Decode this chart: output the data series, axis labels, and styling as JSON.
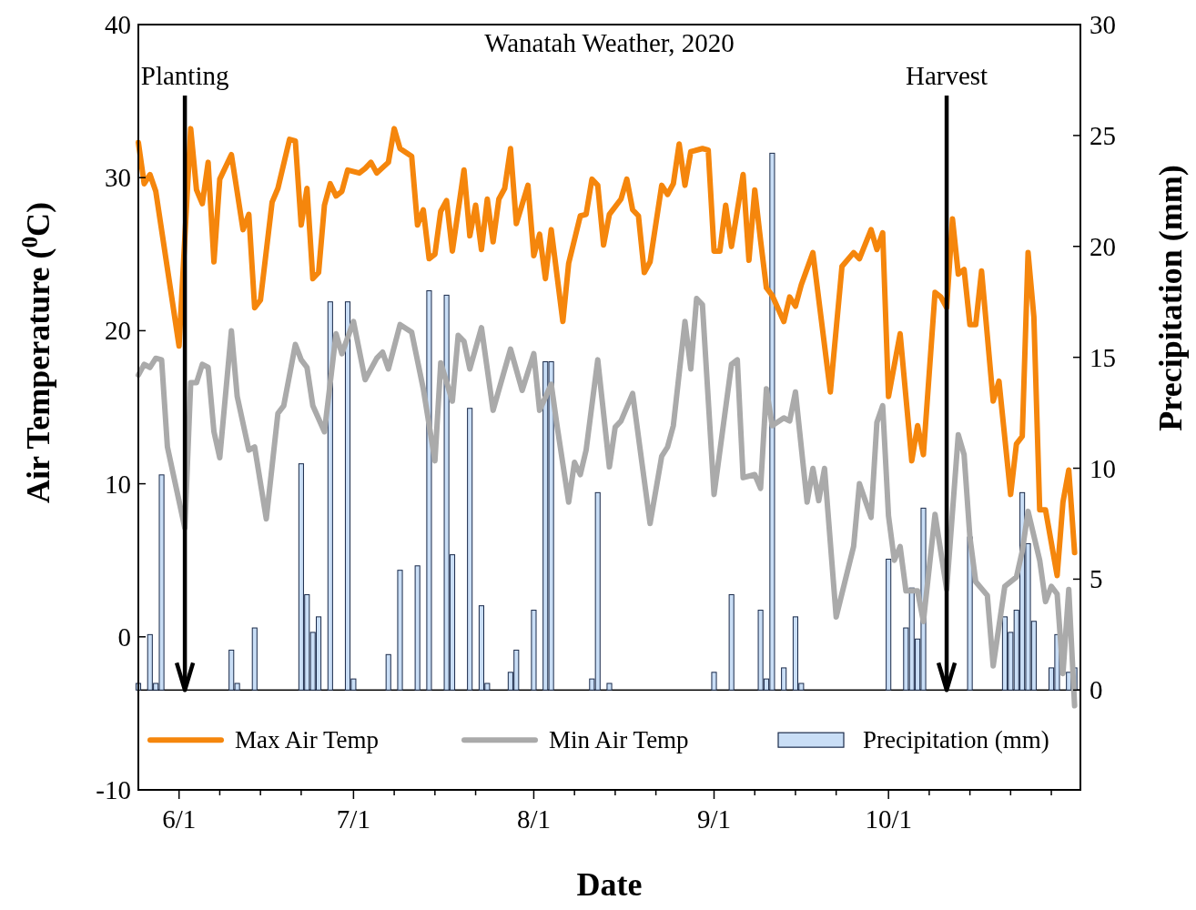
{
  "chart_data": {
    "type": "line",
    "title": "Wanatah Weather, 2020",
    "xlabel": "Date",
    "ylabel": "Air Temperature ($^{0}$C)",
    "y2label": "Precipitation (mm)",
    "xlim": [
      "2020-05-25",
      "2020-11-03"
    ],
    "xticks": [
      {
        "value": "2020-06-01",
        "label": "6/1"
      },
      {
        "value": "2020-06-08",
        "label": null
      },
      {
        "value": "2020-06-15",
        "label": null
      },
      {
        "value": "2020-06-22",
        "label": null
      },
      {
        "value": "2020-07-01",
        "label": "7/1"
      },
      {
        "value": "2020-07-08",
        "label": null
      },
      {
        "value": "2020-07-15",
        "label": null
      },
      {
        "value": "2020-07-22",
        "label": null
      },
      {
        "value": "2020-08-01",
        "label": "8/1"
      },
      {
        "value": "2020-08-08",
        "label": null
      },
      {
        "value": "2020-08-15",
        "label": null
      },
      {
        "value": "2020-08-22",
        "label": null
      },
      {
        "value": "2020-09-01",
        "label": "9/1"
      },
      {
        "value": "2020-09-08",
        "label": null
      },
      {
        "value": "2020-09-15",
        "label": null
      },
      {
        "value": "2020-09-22",
        "label": null
      },
      {
        "value": "2020-10-01",
        "label": "10/1"
      },
      {
        "value": "2020-10-08",
        "label": null
      },
      {
        "value": "2020-10-15",
        "label": null
      },
      {
        "value": "2020-10-22",
        "label": null
      },
      {
        "value": "2020-10-29",
        "label": null
      }
    ],
    "ylim": [
      -10,
      40
    ],
    "yticks": [
      -10,
      0,
      10,
      20,
      30,
      40
    ],
    "y2lim": [
      -4.5,
      30
    ],
    "y2ticks": [
      0,
      5,
      10,
      15,
      20,
      25,
      30
    ],
    "legend": "bottom",
    "ref_lines": [
      {
        "axis": "x",
        "value": "2020-06-02",
        "label": "Planting",
        "color": "#000000"
      },
      {
        "axis": "x",
        "value": "2020-10-11",
        "label": "Harvest",
        "color": "#000000"
      }
    ],
    "series": [
      {
        "name": "Max Air Temp",
        "color": "#f5860c",
        "x": [
          "2020-05-25",
          "2020-05-26",
          "2020-05-27",
          "2020-05-28",
          "2020-06-01",
          "2020-06-03",
          "2020-06-04",
          "2020-06-05",
          "2020-06-06",
          "2020-06-07",
          "2020-06-08",
          "2020-06-10",
          "2020-06-12",
          "2020-06-13",
          "2020-06-14",
          "2020-06-15",
          "2020-06-17",
          "2020-06-18",
          "2020-06-20",
          "2020-06-21",
          "2020-06-22",
          "2020-06-23",
          "2020-06-24",
          "2020-06-25",
          "2020-06-26",
          "2020-06-27",
          "2020-06-28",
          "2020-06-29",
          "2020-06-30",
          "2020-07-02",
          "2020-07-03",
          "2020-07-04",
          "2020-07-05",
          "2020-07-07",
          "2020-07-08",
          "2020-07-09",
          "2020-07-11",
          "2020-07-12",
          "2020-07-13",
          "2020-07-14",
          "2020-07-15",
          "2020-07-16",
          "2020-07-17",
          "2020-07-18",
          "2020-07-20",
          "2020-07-21",
          "2020-07-22",
          "2020-07-23",
          "2020-07-24",
          "2020-07-25",
          "2020-07-26",
          "2020-07-27",
          "2020-07-28",
          "2020-07-29",
          "2020-07-31",
          "2020-08-01",
          "2020-08-02",
          "2020-08-03",
          "2020-08-04",
          "2020-08-06",
          "2020-08-07",
          "2020-08-09",
          "2020-08-10",
          "2020-08-11",
          "2020-08-12",
          "2020-08-13",
          "2020-08-14",
          "2020-08-16",
          "2020-08-17",
          "2020-08-18",
          "2020-08-19",
          "2020-08-20",
          "2020-08-21",
          "2020-08-23",
          "2020-08-24",
          "2020-08-25",
          "2020-08-26",
          "2020-08-27",
          "2020-08-28",
          "2020-08-30",
          "2020-08-31",
          "2020-09-01",
          "2020-09-02",
          "2020-09-03",
          "2020-09-04",
          "2020-09-06",
          "2020-09-07",
          "2020-09-08",
          "2020-09-09",
          "2020-09-10",
          "2020-09-11",
          "2020-09-13",
          "2020-09-14",
          "2020-09-15",
          "2020-09-16",
          "2020-09-18",
          "2020-09-21",
          "2020-09-23",
          "2020-09-25",
          "2020-09-26",
          "2020-09-28",
          "2020-09-29",
          "2020-09-30",
          "2020-10-01",
          "2020-10-03",
          "2020-10-05",
          "2020-10-06",
          "2020-10-07",
          "2020-10-09",
          "2020-10-10",
          "2020-10-11",
          "2020-10-12",
          "2020-10-13",
          "2020-10-14",
          "2020-10-15",
          "2020-10-16",
          "2020-10-17",
          "2020-10-19",
          "2020-10-20",
          "2020-10-22",
          "2020-10-23",
          "2020-10-24",
          "2020-10-25",
          "2020-10-26",
          "2020-10-27",
          "2020-10-28",
          "2020-10-30",
          "2020-10-31",
          "2020-11-01",
          "2020-11-02"
        ],
        "values": [
          32.3,
          29.6,
          30.2,
          29.1,
          19.0,
          33.2,
          29.2,
          28.3,
          31.0,
          24.5,
          29.9,
          31.5,
          26.6,
          27.6,
          21.5,
          22.0,
          28.4,
          29.3,
          32.5,
          32.4,
          26.9,
          29.3,
          23.4,
          23.8,
          28.2,
          29.6,
          28.8,
          29.1,
          30.5,
          30.3,
          30.6,
          31.0,
          30.3,
          31.0,
          33.2,
          31.9,
          31.4,
          26.9,
          27.9,
          24.7,
          25.0,
          27.8,
          28.5,
          25.2,
          30.5,
          26.2,
          28.2,
          25.3,
          28.6,
          25.8,
          28.6,
          29.3,
          31.9,
          27.0,
          29.5,
          24.9,
          26.3,
          23.4,
          26.6,
          20.6,
          24.4,
          27.5,
          27.6,
          29.9,
          29.5,
          25.6,
          27.6,
          28.6,
          29.9,
          27.9,
          27.5,
          23.8,
          24.5,
          29.5,
          28.9,
          29.6,
          32.2,
          29.5,
          31.7,
          31.9,
          31.8,
          25.2,
          25.2,
          28.2,
          25.5,
          30.2,
          24.6,
          29.2,
          25.9,
          22.8,
          22.3,
          20.6,
          22.2,
          21.6,
          23.0,
          25.1,
          16.0,
          24.2,
          25.1,
          24.7,
          26.6,
          25.3,
          26.4,
          15.7,
          19.8,
          11.5,
          13.8,
          11.9,
          22.5,
          22.2,
          21.5,
          27.3,
          23.7,
          24.0,
          20.4,
          20.4,
          23.9,
          15.4,
          16.7,
          9.3,
          12.6,
          13.1,
          25.1,
          20.9,
          8.3,
          8.3,
          4.0,
          8.8,
          10.9,
          5.5
        ]
      },
      {
        "name": "Min Air Temp",
        "color": "#aaaaaa",
        "x": [
          "2020-05-25",
          "2020-05-26",
          "2020-05-27",
          "2020-05-28",
          "2020-05-29",
          "2020-05-30",
          "2020-06-02",
          "2020-06-03",
          "2020-06-04",
          "2020-06-05",
          "2020-06-06",
          "2020-06-07",
          "2020-06-08",
          "2020-06-10",
          "2020-06-11",
          "2020-06-13",
          "2020-06-14",
          "2020-06-16",
          "2020-06-18",
          "2020-06-19",
          "2020-06-21",
          "2020-06-22",
          "2020-06-23",
          "2020-06-24",
          "2020-06-26",
          "2020-06-28",
          "2020-06-29",
          "2020-07-01",
          "2020-07-03",
          "2020-07-05",
          "2020-07-06",
          "2020-07-07",
          "2020-07-09",
          "2020-07-11",
          "2020-07-13",
          "2020-07-15",
          "2020-07-16",
          "2020-07-18",
          "2020-07-19",
          "2020-07-20",
          "2020-07-21",
          "2020-07-23",
          "2020-07-25",
          "2020-07-28",
          "2020-07-30",
          "2020-08-01",
          "2020-08-02",
          "2020-08-04",
          "2020-08-05",
          "2020-08-07",
          "2020-08-08",
          "2020-08-09",
          "2020-08-10",
          "2020-08-12",
          "2020-08-14",
          "2020-08-15",
          "2020-08-16",
          "2020-08-18",
          "2020-08-21",
          "2020-08-23",
          "2020-08-24",
          "2020-08-25",
          "2020-08-27",
          "2020-08-28",
          "2020-08-29",
          "2020-08-30",
          "2020-09-01",
          "2020-09-04",
          "2020-09-05",
          "2020-09-06",
          "2020-09-08",
          "2020-09-09",
          "2020-09-10",
          "2020-09-11",
          "2020-09-13",
          "2020-09-14",
          "2020-09-15",
          "2020-09-17",
          "2020-09-18",
          "2020-09-19",
          "2020-09-20",
          "2020-09-22",
          "2020-09-25",
          "2020-09-26",
          "2020-09-28",
          "2020-09-29",
          "2020-09-30",
          "2020-10-01",
          "2020-10-02",
          "2020-10-03",
          "2020-10-04",
          "2020-10-06",
          "2020-10-07",
          "2020-10-09",
          "2020-10-11",
          "2020-10-13",
          "2020-10-14",
          "2020-10-15",
          "2020-10-16",
          "2020-10-18",
          "2020-10-19",
          "2020-10-21",
          "2020-10-23",
          "2020-10-24",
          "2020-10-25",
          "2020-10-27",
          "2020-10-28",
          "2020-10-29",
          "2020-10-30",
          "2020-10-31",
          "2020-11-01",
          "2020-11-02"
        ],
        "values": [
          17.1,
          17.8,
          17.6,
          18.2,
          18.1,
          12.4,
          7.1,
          16.6,
          16.6,
          17.8,
          17.6,
          13.4,
          11.7,
          20.0,
          15.7,
          12.2,
          12.4,
          7.7,
          14.6,
          15.1,
          19.1,
          18.1,
          17.6,
          15.1,
          13.4,
          19.8,
          18.5,
          20.6,
          16.8,
          18.2,
          18.6,
          17.5,
          20.4,
          19.9,
          16.2,
          11.5,
          17.9,
          15.4,
          19.7,
          19.3,
          17.5,
          20.2,
          14.8,
          18.8,
          16.1,
          18.5,
          14.8,
          16.5,
          13.8,
          8.8,
          11.4,
          10.6,
          12.2,
          18.1,
          11.1,
          13.7,
          14.1,
          15.9,
          7.4,
          11.8,
          12.4,
          13.8,
          20.6,
          17.5,
          22.1,
          21.7,
          9.3,
          17.8,
          18.1,
          10.4,
          10.6,
          9.7,
          16.2,
          13.8,
          14.3,
          14.1,
          16.0,
          8.8,
          11.0,
          8.9,
          11.0,
          1.3,
          5.9,
          10.0,
          7.8,
          14.0,
          15.1,
          7.9,
          5.0,
          5.9,
          3.0,
          3.0,
          1.0,
          8.0,
          3.1,
          13.2,
          11.9,
          6.5,
          3.6,
          2.7,
          -1.9,
          3.3,
          3.9,
          5.6,
          8.2,
          5.0,
          2.3,
          3.3,
          2.8,
          -2.4,
          3.1,
          -4.5
        ]
      },
      {
        "name": "Precipitation (mm)",
        "type": "bar",
        "axis": "y2",
        "color": "#c9def6",
        "x": [
          "2020-05-25",
          "2020-05-27",
          "2020-05-28",
          "2020-05-29",
          "2020-06-10",
          "2020-06-11",
          "2020-06-14",
          "2020-06-22",
          "2020-06-23",
          "2020-06-24",
          "2020-06-25",
          "2020-06-27",
          "2020-06-30",
          "2020-07-01",
          "2020-07-07",
          "2020-07-09",
          "2020-07-12",
          "2020-07-14",
          "2020-07-17",
          "2020-07-18",
          "2020-07-21",
          "2020-07-23",
          "2020-07-24",
          "2020-07-28",
          "2020-07-29",
          "2020-08-01",
          "2020-08-03",
          "2020-08-04",
          "2020-08-11",
          "2020-08-12",
          "2020-08-14",
          "2020-09-01",
          "2020-09-04",
          "2020-09-09",
          "2020-09-10",
          "2020-09-11",
          "2020-09-13",
          "2020-09-15",
          "2020-09-16",
          "2020-10-01",
          "2020-10-04",
          "2020-10-05",
          "2020-10-06",
          "2020-10-07",
          "2020-10-15",
          "2020-10-21",
          "2020-10-22",
          "2020-10-23",
          "2020-10-24",
          "2020-10-25",
          "2020-10-26",
          "2020-10-29",
          "2020-10-30",
          "2020-11-01",
          "2020-11-02"
        ],
        "values": [
          0.3,
          2.5,
          0.3,
          9.7,
          1.8,
          0.3,
          2.8,
          10.2,
          4.3,
          2.6,
          3.3,
          17.5,
          17.5,
          0.5,
          1.6,
          5.4,
          5.6,
          18.0,
          17.8,
          6.1,
          12.7,
          3.8,
          0.3,
          0.8,
          1.8,
          3.6,
          14.8,
          14.8,
          0.5,
          8.9,
          0.3,
          0.8,
          4.3,
          3.6,
          0.5,
          24.2,
          1.0,
          3.3,
          0.3,
          5.9,
          2.8,
          4.6,
          2.3,
          8.2,
          6.9,
          3.3,
          2.6,
          3.6,
          8.9,
          6.6,
          3.1,
          1.0,
          2.5,
          0.8,
          1.0
        ]
      }
    ]
  }
}
